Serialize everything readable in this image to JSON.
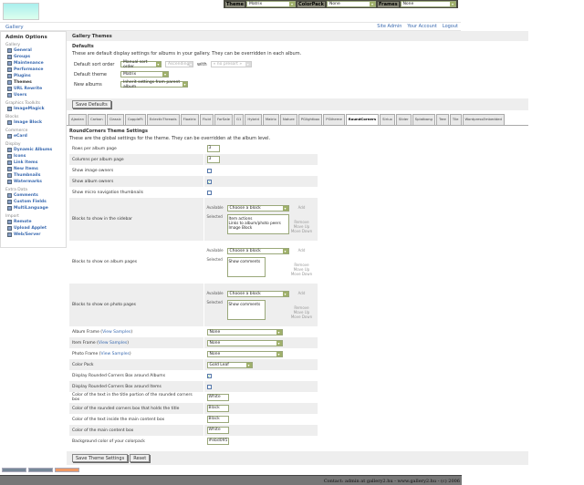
{
  "topbar": {
    "theme_label": "Theme",
    "theme_value": "Matrix",
    "colorpack_label": "ColorPack",
    "colorpack_value": "None",
    "frames_label": "Frames",
    "frames_value": "None"
  },
  "logo": "Gallery",
  "breadcrumb": "Gallery",
  "user_links": [
    "Site Admin",
    "Your Account",
    "Logout"
  ],
  "sidebar": {
    "title": "Admin Options",
    "groups": [
      {
        "label": "Gallery",
        "items": [
          "General",
          "Groups",
          "Maintenance",
          "Performance",
          "Plugins",
          "Themes",
          "URL Rewrite",
          "Users"
        ],
        "current": "Themes"
      },
      {
        "label": "Graphics Toolkits",
        "items": [
          "ImageMagick"
        ]
      },
      {
        "label": "Blocks",
        "items": [
          "Image Block"
        ]
      },
      {
        "label": "Commerce",
        "items": [
          "eCard"
        ]
      },
      {
        "label": "Display",
        "items": [
          "Dynamic Albums",
          "Icons",
          "Link Items",
          "New Items",
          "Thumbnails",
          "Watermarks"
        ]
      },
      {
        "label": "Extra Data",
        "items": [
          "Comments",
          "Custom Fields",
          "MultiLanguage"
        ]
      },
      {
        "label": "Import",
        "items": [
          "Remote",
          "Upload Applet",
          "Web/Server"
        ]
      }
    ]
  },
  "main": {
    "title": "Gallery Themes",
    "defaults": {
      "heading": "Defaults",
      "description": "These are default display settings for albums in your gallery. They can be overridden in each album.",
      "sort_label": "Default sort order",
      "sort_value": "Manual sort order",
      "direction_value": "Ascending",
      "with_label": "with",
      "with_value": "« no presort »",
      "theme_label": "Default theme",
      "theme_value": "Matrix",
      "new_albums_label": "New albums",
      "new_albums_value": "Inherit settings from parent album",
      "save_button": "Save Defaults"
    },
    "tabs": [
      "Ajaxian",
      "Carbon",
      "Classic",
      "CoppleFt",
      "EclecticThreads",
      "Floatrix",
      "Fluid",
      "ForSale",
      "G1",
      "Hybrid",
      "Matrix",
      "Nature",
      "PGlightbox",
      "PGtheme",
      "RoundCorners",
      "Siriux",
      "Slider",
      "Splatbang",
      "Tree",
      "Tile",
      "WordpressEmbedded"
    ],
    "active_tab": "RoundCorners",
    "settings": {
      "heading": "RoundCorners Theme Settings",
      "description": "These are the global settings for the theme. They can be overridden at the album level.",
      "block_labels": {
        "available": "Available",
        "selected": "Selected",
        "choose": "Choose a block",
        "add": "Add",
        "remove": "Remove",
        "up": "Move Up",
        "down": "Move Down"
      },
      "view_samples": "View Samples",
      "rows": [
        {
          "label": "Rows per album page",
          "type": "text",
          "value": "3"
        },
        {
          "label": "Columns per album page",
          "type": "text",
          "value": "3"
        },
        {
          "label": "Show image owners",
          "type": "checkbox",
          "checked": false
        },
        {
          "label": "Show album owners",
          "type": "checkbox",
          "checked": true
        },
        {
          "label": "Show micro navigation thumbnails",
          "type": "checkbox",
          "checked": false
        },
        {
          "label": "Blocks to show in the sidebar",
          "type": "blocks",
          "selected": [
            "Item actions",
            "Links to album/photo peers",
            "Image Block"
          ]
        },
        {
          "label": "Blocks to show on album pages",
          "type": "blocks",
          "selected": [
            "Show comments"
          ]
        },
        {
          "label": "Blocks to show on photo pages",
          "type": "blocks",
          "selected": [
            "Show comments"
          ]
        },
        {
          "label": "Album Frame",
          "samples": true,
          "type": "select",
          "value": "None"
        },
        {
          "label": "Item Frame",
          "samples": true,
          "type": "select",
          "value": "None"
        },
        {
          "label": "Photo Frame",
          "samples": true,
          "type": "select",
          "value": "None"
        },
        {
          "label": "Color Pack",
          "type": "select",
          "value": "Gold Leaf",
          "short": true
        },
        {
          "label": "Display Rounded Corners Box around Albums",
          "type": "checkbox",
          "checked": true
        },
        {
          "label": "Display Rounded Corners Box around Items",
          "type": "checkbox",
          "checked": false
        },
        {
          "label": "Color of the text in the title portion of the rounded corners box",
          "type": "textw",
          "value": "White"
        },
        {
          "label": "Color of the rounded corners box that holds the title",
          "type": "textw",
          "value": "Black"
        },
        {
          "label": "Color of the text inside the main content box",
          "type": "textw",
          "value": "Black"
        },
        {
          "label": "Color of the main content box",
          "type": "textw",
          "value": "White"
        },
        {
          "label": "Background color of your colorpack",
          "type": "textw",
          "value": "#ebd095"
        }
      ],
      "save_button": "Save Theme Settings",
      "reset_button": "Reset"
    }
  },
  "footer": "Contact: admin at gallery2.hu - www.gallery2.hu - (c) 2006",
  "colors": {
    "link": "#3a6ab0",
    "footer_bg": "#777777",
    "panel_bg": "#eeeeee"
  }
}
